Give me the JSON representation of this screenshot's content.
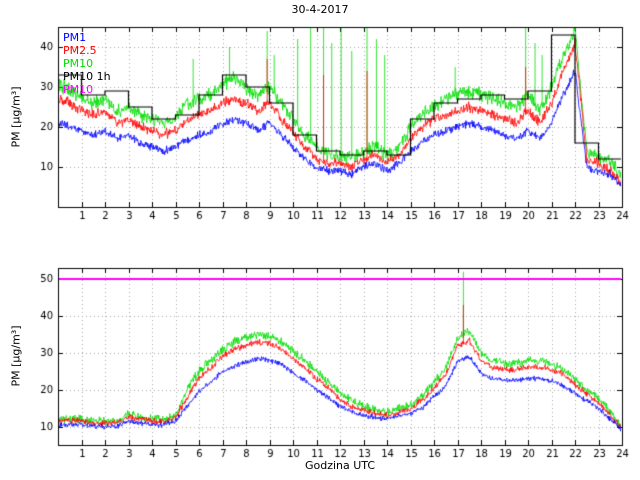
{
  "figure": {
    "title": "30-4-2017",
    "background": "#ffffff"
  },
  "legend": {
    "position": "top-left-of-upper-plot",
    "items": [
      {
        "label": "PM1",
        "color": "#0000ff"
      },
      {
        "label": "PM2.5",
        "color": "#ff0000"
      },
      {
        "label": "PM10",
        "color": "#00dd00"
      },
      {
        "label": "PM10 1h",
        "color": "#000000"
      },
      {
        "label": "PM10",
        "color": "#ff00ff"
      }
    ]
  },
  "chart_data": [
    {
      "id": "upper",
      "type": "line",
      "title": "30-4-2017",
      "xlabel": "",
      "ylabel": "PM [µg/m³]",
      "xlim": [
        0,
        24
      ],
      "ylim": [
        0,
        45
      ],
      "xticks": [
        1,
        2,
        3,
        4,
        5,
        6,
        7,
        8,
        9,
        10,
        11,
        12,
        13,
        14,
        15,
        16,
        17,
        18,
        19,
        20,
        21,
        22,
        23,
        24
      ],
      "yticks": [
        10,
        20,
        30,
        40
      ],
      "grid": true,
      "x_step": 0.5,
      "series": [
        {
          "name": "PM1",
          "color": "#0000ff",
          "noise": 1.2,
          "values": [
            21,
            20,
            19,
            18,
            19,
            17,
            18,
            16,
            15,
            14,
            15,
            17,
            18,
            19,
            21,
            22,
            21,
            19,
            21,
            18,
            15,
            12,
            10,
            9,
            9,
            8,
            10,
            11,
            9,
            11,
            14,
            16,
            18,
            19,
            20,
            21,
            20,
            19,
            18,
            17,
            19,
            17,
            21,
            28,
            34,
            10,
            9,
            8,
            5
          ]
        },
        {
          "name": "PM2.5",
          "color": "#ff0000",
          "noise": 1.5,
          "values": [
            27,
            26,
            24,
            23,
            24,
            21,
            22,
            20,
            19,
            18,
            19,
            22,
            23,
            24,
            26,
            27,
            26,
            24,
            26,
            22,
            19,
            15,
            12,
            11,
            11,
            10,
            12,
            13,
            11,
            13,
            17,
            20,
            22,
            23,
            24,
            25,
            24,
            23,
            22,
            21,
            24,
            21,
            26,
            34,
            41,
            12,
            11,
            9,
            6
          ],
          "spikes": [
            [
              8.9,
              37
            ],
            [
              11.3,
              33
            ],
            [
              13.15,
              34
            ],
            [
              19.9,
              35
            ]
          ]
        },
        {
          "name": "PM10",
          "color": "#00dd00",
          "noise": 2.1,
          "values": [
            31,
            29,
            27,
            26,
            27,
            24,
            25,
            23,
            22,
            21,
            22,
            26,
            27,
            28,
            31,
            32,
            30,
            28,
            30,
            26,
            22,
            18,
            15,
            13,
            13,
            12,
            14,
            15,
            13,
            15,
            20,
            23,
            25,
            27,
            28,
            29,
            28,
            27,
            26,
            25,
            28,
            24,
            30,
            38,
            44,
            14,
            13,
            11,
            8
          ],
          "spikes": [
            [
              5.75,
              37
            ],
            [
              7.3,
              40
            ],
            [
              8.9,
              44
            ],
            [
              9.2,
              38
            ],
            [
              10.2,
              42
            ],
            [
              10.75,
              45
            ],
            [
              11.3,
              45
            ],
            [
              11.65,
              41
            ],
            [
              12.05,
              45
            ],
            [
              12.5,
              39
            ],
            [
              13.15,
              45
            ],
            [
              13.55,
              42
            ],
            [
              13.9,
              38
            ],
            [
              16.9,
              35
            ],
            [
              19.9,
              45
            ],
            [
              20.3,
              41
            ],
            [
              20.6,
              38
            ],
            [
              21.0,
              37
            ]
          ]
        }
      ],
      "step_series": {
        "name": "PM10 1h",
        "color": "#000000",
        "values": [
          33,
          28,
          29,
          25,
          22,
          23,
          28,
          33,
          30,
          26,
          18,
          14,
          13,
          14,
          13,
          22,
          26,
          27,
          28,
          27,
          29,
          43,
          16,
          12
        ]
      }
    },
    {
      "id": "lower",
      "type": "line",
      "title": "",
      "xlabel": "Godzina UTC",
      "ylabel": "PM [µg/m³]",
      "xlim": [
        0,
        24
      ],
      "ylim": [
        5,
        53
      ],
      "xticks": [
        1,
        2,
        3,
        4,
        5,
        6,
        7,
        8,
        9,
        10,
        11,
        12,
        13,
        14,
        15,
        16,
        17,
        18,
        19,
        20,
        21,
        22,
        23,
        24
      ],
      "yticks": [
        10,
        20,
        30,
        40,
        50
      ],
      "grid": true,
      "x_step": 0.5,
      "series": [
        {
          "name": "PM1",
          "color": "#0000ff",
          "noise": 0.8,
          "values": [
            10.5,
            10.5,
            10.5,
            10,
            10,
            10,
            11.5,
            11,
            10.5,
            10.5,
            11.5,
            15.5,
            19.5,
            22,
            25,
            26.5,
            27.5,
            28.5,
            28,
            27,
            24.5,
            22.5,
            20,
            18,
            15.5,
            14,
            13,
            12.5,
            12,
            13,
            13.5,
            15,
            18,
            21,
            27.5,
            29,
            24.5,
            23,
            22.5,
            22.5,
            23,
            23,
            22.5,
            21,
            19,
            17,
            15,
            12,
            9
          ]
        },
        {
          "name": "PM2.5",
          "color": "#ff0000",
          "noise": 1.0,
          "values": [
            11.5,
            11.5,
            11.5,
            11,
            11,
            11,
            12.5,
            12,
            11.5,
            11.5,
            12.5,
            18,
            23,
            26,
            29,
            31,
            32,
            33,
            32.5,
            31,
            28.5,
            26,
            23,
            20.5,
            17.5,
            15.5,
            14.5,
            13.5,
            13,
            14,
            15,
            17,
            20.5,
            24,
            32,
            33.5,
            28,
            26,
            25.5,
            25.5,
            26,
            26,
            25.5,
            24,
            21.5,
            19,
            16.5,
            13,
            9.5
          ],
          "spikes": [
            [
              17.25,
              43
            ]
          ]
        },
        {
          "name": "PM10",
          "color": "#00dd00",
          "noise": 1.4,
          "values": [
            12,
            12,
            12,
            11.5,
            11.5,
            11.5,
            13.5,
            12.5,
            12,
            12,
            13,
            20,
            25,
            28,
            31,
            33,
            34,
            35,
            34.5,
            33,
            30.5,
            28,
            25,
            22,
            19,
            17,
            15.5,
            14.5,
            14,
            15,
            16,
            18,
            22,
            26,
            34,
            36,
            30,
            28,
            27,
            27,
            28,
            28,
            27,
            25.5,
            23,
            20,
            17.5,
            14,
            10
          ],
          "spikes": [
            [
              17.25,
              52
            ]
          ]
        }
      ],
      "threshold": {
        "name": "PM10",
        "color": "#ff00ff",
        "value": 50
      }
    }
  ]
}
